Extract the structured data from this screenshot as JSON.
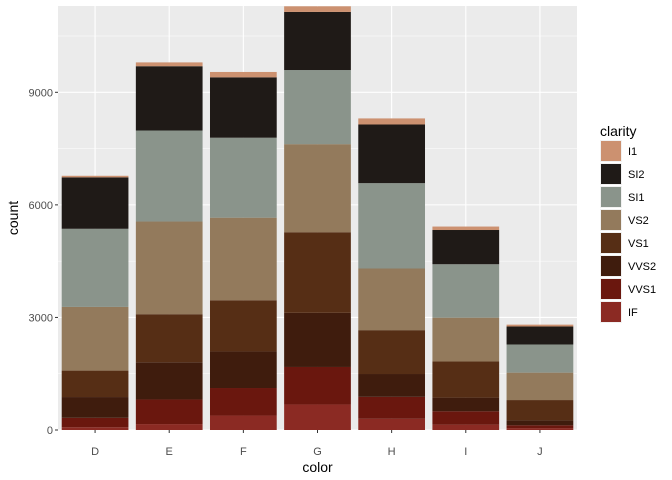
{
  "chart_data": {
    "type": "bar",
    "stacked": true,
    "xlabel": "color",
    "ylabel": "count",
    "categories": [
      "D",
      "E",
      "F",
      "G",
      "H",
      "I",
      "J"
    ],
    "ylim": [
      0,
      11300
    ],
    "yticks": [
      0,
      3000,
      6000,
      9000
    ],
    "ytick_labels": [
      "0",
      "3000",
      "6000",
      "9000"
    ],
    "grid": true,
    "legend": {
      "title": "clarity",
      "position": "right"
    },
    "series": [
      {
        "name": "IF",
        "color": "#8b2a23",
        "values": [
          73,
          158,
          385,
          681,
          299,
          143,
          51
        ]
      },
      {
        "name": "VVS1",
        "color": "#6a170e",
        "values": [
          252,
          656,
          734,
          999,
          585,
          355,
          74
        ]
      },
      {
        "name": "VVS2",
        "color": "#3f1c0d",
        "values": [
          553,
          991,
          975,
          1443,
          608,
          365,
          131
        ]
      },
      {
        "name": "VS1",
        "color": "#562e15",
        "values": [
          705,
          1281,
          1364,
          2148,
          1169,
          962,
          542
        ]
      },
      {
        "name": "VS2",
        "color": "#937a5c",
        "values": [
          1697,
          2470,
          2201,
          2347,
          1643,
          1169,
          731
        ]
      },
      {
        "name": "SI1",
        "color": "#8a948b",
        "values": [
          2083,
          2426,
          2131,
          1976,
          2275,
          1424,
          750
        ]
      },
      {
        "name": "SI2",
        "color": "#1f1a17",
        "values": [
          1370,
          1713,
          1609,
          1548,
          1563,
          912,
          479
        ]
      },
      {
        "name": "I1",
        "color": "#cc9170",
        "values": [
          42,
          102,
          143,
          150,
          162,
          92,
          50
        ]
      }
    ]
  }
}
